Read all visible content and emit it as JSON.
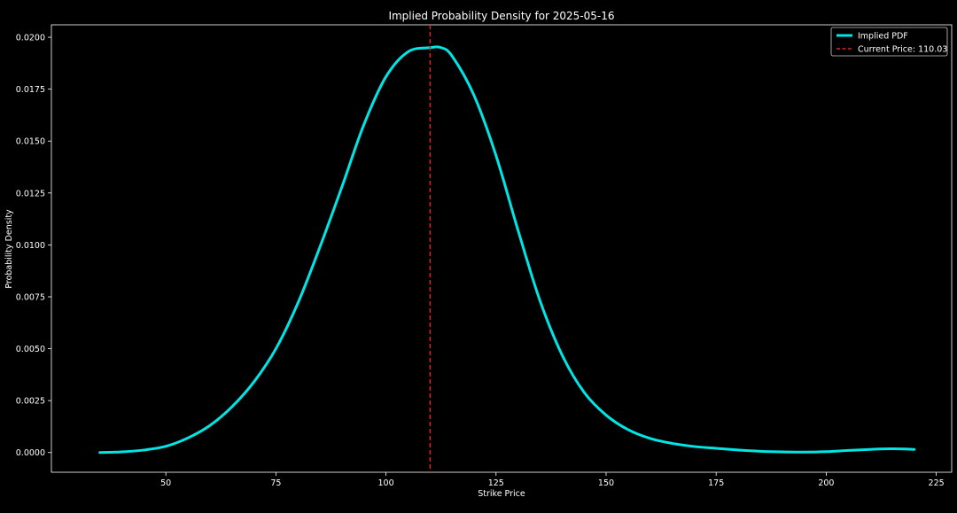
{
  "chart_data": {
    "type": "line",
    "title": "Implied Probability Density for 2025-05-16",
    "xlabel": "Strike Price",
    "ylabel": "Probability Density",
    "xlim": [
      24,
      228.5
    ],
    "ylim": [
      -0.00095,
      0.0206
    ],
    "x_ticks": [
      50,
      75,
      100,
      125,
      150,
      175,
      200,
      225
    ],
    "x_tick_labels": [
      "50",
      "75",
      "100",
      "125",
      "150",
      "175",
      "200",
      "225"
    ],
    "y_ticks": [
      0.0,
      0.0025,
      0.005,
      0.0075,
      0.01,
      0.0125,
      0.015,
      0.0175,
      0.02
    ],
    "y_tick_labels": [
      "0.0000",
      "0.0025",
      "0.0050",
      "0.0075",
      "0.0100",
      "0.0125",
      "0.0150",
      "0.0175",
      "0.0200"
    ],
    "grid": false,
    "legend_position": "top-right",
    "background": "#000000",
    "series": [
      {
        "name": "Implied PDF",
        "color": "#00e5e5",
        "style": "solid",
        "x": [
          35,
          40,
          45,
          50,
          55,
          60,
          65,
          70,
          75,
          80,
          85,
          90,
          95,
          100,
          105,
          110,
          112.5,
          115,
          120,
          125,
          130,
          135,
          140,
          145,
          150,
          155,
          160,
          165,
          170,
          175,
          180,
          185,
          190,
          195,
          200,
          205,
          210,
          215,
          220
        ],
        "y": [
          0.0,
          3e-05,
          0.00012,
          0.0003,
          0.0007,
          0.0013,
          0.0022,
          0.0034,
          0.005,
          0.0072,
          0.0099,
          0.0128,
          0.0158,
          0.0181,
          0.0193,
          0.0195,
          0.0195,
          0.0191,
          0.0172,
          0.0143,
          0.0107,
          0.0073,
          0.0047,
          0.0029,
          0.0018,
          0.0011,
          0.00068,
          0.00044,
          0.00029,
          0.0002,
          0.00012,
          6e-05,
          3e-05,
          2e-05,
          4e-05,
          0.0001,
          0.00015,
          0.00018,
          0.00015
        ]
      },
      {
        "name": "Current Price: 110.03",
        "color": "#d62728",
        "style": "dashed",
        "vline": 110.03
      }
    ]
  }
}
